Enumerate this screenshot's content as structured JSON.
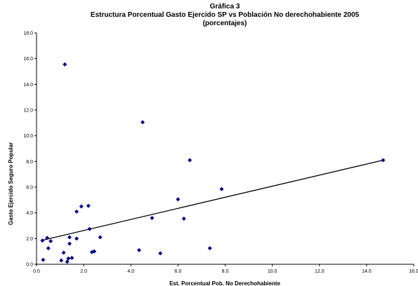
{
  "chart_data": {
    "type": "scatter",
    "title": "Gráfica 3",
    "subtitle": "Estructura Porcentual Gasto Ejercido SP vs Población No derechohabiente 2005",
    "subtitle2": "(porcentajes)",
    "xlabel": "Est. Porcentual Pob. No Derechohabiente",
    "ylabel": "Gasto Ejercido Seguro Popular",
    "xlim": [
      0,
      16
    ],
    "ylim": [
      0,
      18
    ],
    "x_ticks": [
      "0.0",
      "2.0",
      "4.0",
      "6.0",
      "8.0",
      "10.0",
      "12.0",
      "14.0",
      "16.0"
    ],
    "y_ticks": [
      "0.0",
      "2.0",
      "4.0",
      "6.0",
      "8.0",
      "10.0",
      "12.0",
      "14.0",
      "16.0",
      "18.0"
    ],
    "grid": false,
    "marker_color": "#000080",
    "trendline": {
      "x": [
        0.2,
        14.7
      ],
      "y": [
        1.85,
        8.1
      ]
    },
    "points": [
      {
        "x": 0.25,
        "y": 1.85
      },
      {
        "x": 0.28,
        "y": 0.35
      },
      {
        "x": 0.45,
        "y": 2.05
      },
      {
        "x": 0.5,
        "y": 1.25
      },
      {
        "x": 0.6,
        "y": 1.8
      },
      {
        "x": 1.05,
        "y": 0.3
      },
      {
        "x": 1.15,
        "y": 0.9
      },
      {
        "x": 1.2,
        "y": 15.55
      },
      {
        "x": 1.3,
        "y": 0.2
      },
      {
        "x": 1.35,
        "y": 0.45
      },
      {
        "x": 1.4,
        "y": 2.1
      },
      {
        "x": 1.4,
        "y": 1.6
      },
      {
        "x": 1.5,
        "y": 0.5
      },
      {
        "x": 1.7,
        "y": 2.0
      },
      {
        "x": 1.7,
        "y": 4.1
      },
      {
        "x": 1.9,
        "y": 4.5
      },
      {
        "x": 2.2,
        "y": 4.55
      },
      {
        "x": 2.25,
        "y": 2.75
      },
      {
        "x": 2.35,
        "y": 0.95
      },
      {
        "x": 2.45,
        "y": 1.0
      },
      {
        "x": 2.7,
        "y": 2.1
      },
      {
        "x": 4.35,
        "y": 1.1
      },
      {
        "x": 4.5,
        "y": 11.05
      },
      {
        "x": 4.9,
        "y": 3.6
      },
      {
        "x": 5.25,
        "y": 0.85
      },
      {
        "x": 6.0,
        "y": 5.05
      },
      {
        "x": 6.25,
        "y": 3.55
      },
      {
        "x": 6.5,
        "y": 8.1
      },
      {
        "x": 7.35,
        "y": 1.25
      },
      {
        "x": 7.85,
        "y": 5.85
      },
      {
        "x": 14.7,
        "y": 8.1
      }
    ]
  }
}
